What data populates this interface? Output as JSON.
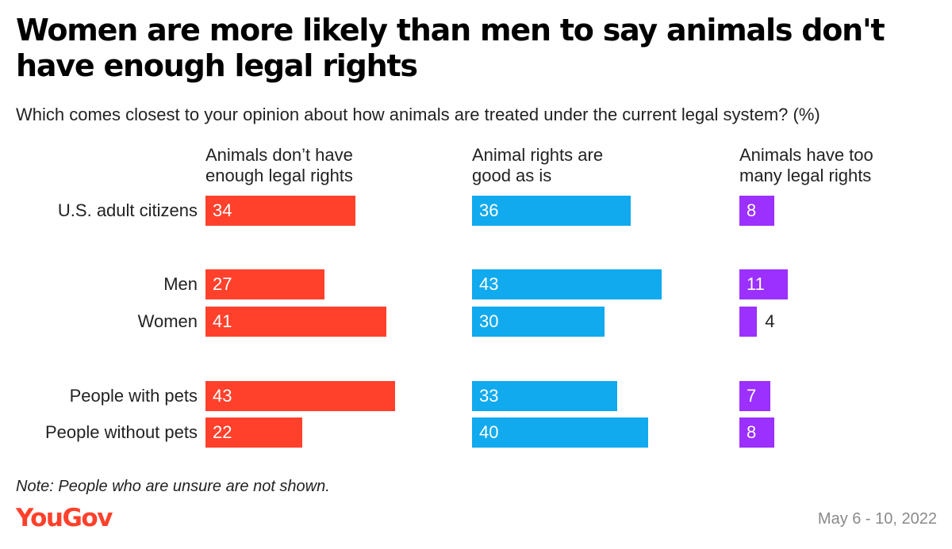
{
  "title": "Women are more likely than men to say animals don't have enough legal rights",
  "subtitle": "Which comes closest to your opinion about how animals are treated under the current legal system? (%)",
  "note": "Note: People who are unsure are not shown.",
  "brand": "YouGov",
  "date": "May 6 - 10, 2022",
  "colors": {
    "not_enough": "#ff412c",
    "good_as_is": "#11aaee",
    "too_many": "#9b30ff"
  },
  "chart_data": {
    "type": "bar",
    "orientation": "horizontal",
    "layout": "small-multiples",
    "categories": [
      "U.S. adult citizens",
      "Men",
      "Women",
      "People with pets",
      "People without pets"
    ],
    "series": [
      {
        "name": "Animals don’t have\nenough legal rights",
        "color": "#ff412c",
        "values": [
          34,
          27,
          41,
          43,
          22
        ]
      },
      {
        "name": "Animal rights are\ngood as is",
        "color": "#11aaee",
        "values": [
          36,
          43,
          30,
          33,
          40
        ]
      },
      {
        "name": "Animals have too\nmany legal rights",
        "color": "#9b30ff",
        "values": [
          8,
          11,
          4,
          7,
          8
        ]
      }
    ]
  }
}
